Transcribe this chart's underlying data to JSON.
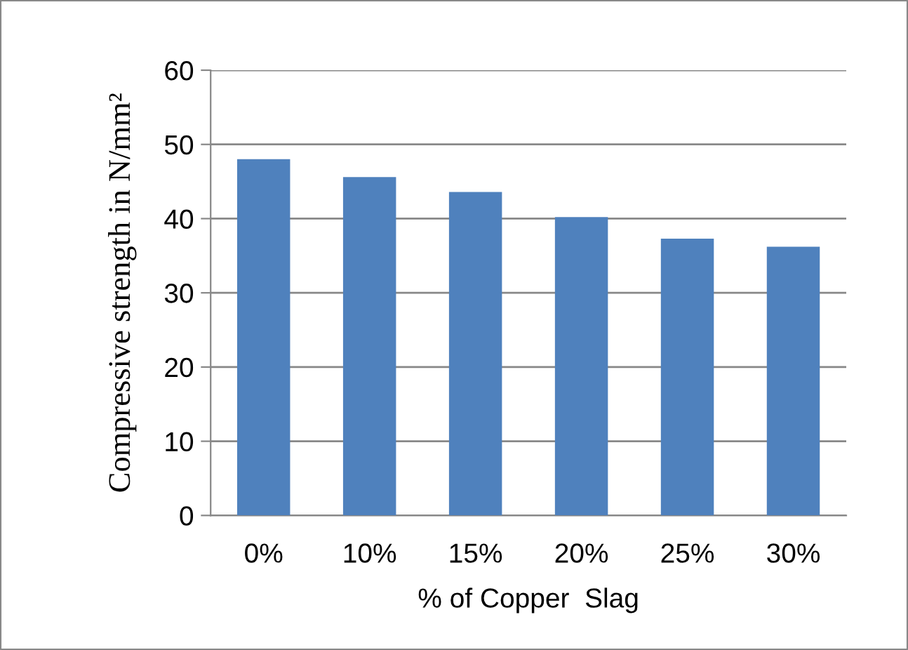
{
  "chart_data": {
    "type": "bar",
    "categories": [
      "0%",
      "10%",
      "15%",
      "20%",
      "25%",
      "30%"
    ],
    "values": [
      48,
      45.6,
      43.6,
      40.2,
      37.3,
      36.2
    ],
    "color": "#4f81bd",
    "ylim": [
      0,
      60
    ],
    "yticks": [
      0,
      10,
      20,
      30,
      40,
      50,
      60
    ],
    "grid": "y",
    "xlabel": "% of Copper  Slag",
    "ylabel": "Compressive strength in N/mm²"
  }
}
